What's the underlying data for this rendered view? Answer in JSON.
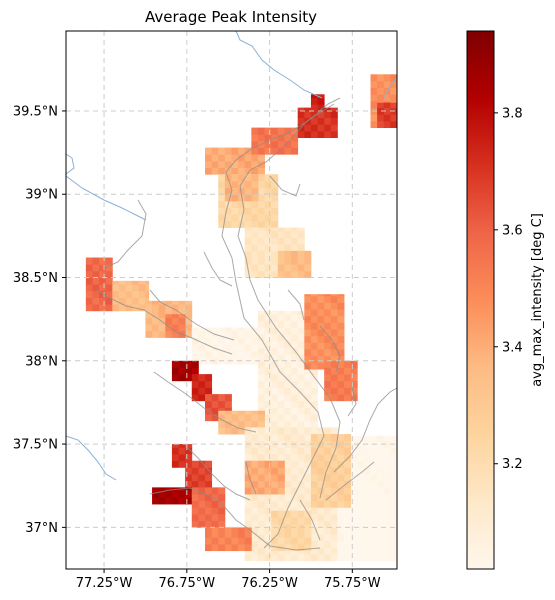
{
  "chart_data": {
    "type": "heatmap",
    "title": "Average Peak Intensity",
    "xlabel": "",
    "ylabel": "",
    "xlim": [
      -77.48,
      -75.48
    ],
    "ylim": [
      36.75,
      39.98
    ],
    "x_ticks": [
      {
        "value": -77.25,
        "label": "77.25°W"
      },
      {
        "value": -76.75,
        "label": "76.75°W"
      },
      {
        "value": -76.25,
        "label": "76.25°W"
      },
      {
        "value": -75.75,
        "label": "75.75°W"
      }
    ],
    "y_ticks": [
      {
        "value": 37.0,
        "label": "37°N"
      },
      {
        "value": 37.5,
        "label": "37.5°N"
      },
      {
        "value": 38.0,
        "label": "38°N"
      },
      {
        "value": 38.5,
        "label": "38.5°N"
      },
      {
        "value": 39.0,
        "label": "39°N"
      },
      {
        "value": 39.5,
        "label": "39.5°N"
      }
    ],
    "grid": true,
    "colorbar": {
      "label": "avg_max_intensity [deg C]",
      "vmin": 3.02,
      "vmax": 3.94,
      "ticks": [
        3.2,
        3.4,
        3.6,
        3.8
      ],
      "colormap": "OrRd"
    },
    "cell_size_deg": [
      0.04,
      0.04
    ],
    "regions": [
      {
        "lon": [
          -76.64,
          -76.28
        ],
        "lat": [
          39.12,
          39.28
        ],
        "value": 3.48
      },
      {
        "lon": [
          -76.36,
          -76.08
        ],
        "lat": [
          39.24,
          39.4
        ],
        "value": 3.62
      },
      {
        "lon": [
          -76.08,
          -75.84
        ],
        "lat": [
          39.34,
          39.52
        ],
        "value": 3.78
      },
      {
        "lon": [
          -76.0,
          -75.92
        ],
        "lat": [
          39.5,
          39.6
        ],
        "value": 3.82
      },
      {
        "lon": [
          -75.64,
          -75.48
        ],
        "lat": [
          39.4,
          39.72
        ],
        "value": 3.55
      },
      {
        "lon": [
          -75.6,
          -75.48
        ],
        "lat": [
          39.4,
          39.55
        ],
        "value": 3.75
      },
      {
        "lon": [
          -76.56,
          -76.2
        ],
        "lat": [
          38.8,
          39.12
        ],
        "value": 3.3
      },
      {
        "lon": [
          -76.52,
          -76.32
        ],
        "lat": [
          38.96,
          39.12
        ],
        "value": 3.45
      },
      {
        "lon": [
          -76.4,
          -76.04
        ],
        "lat": [
          38.5,
          38.8
        ],
        "value": 3.22
      },
      {
        "lon": [
          -76.2,
          -76.0
        ],
        "lat": [
          38.5,
          38.66
        ],
        "value": 3.42
      },
      {
        "lon": [
          -77.36,
          -77.2
        ],
        "lat": [
          38.3,
          38.62
        ],
        "value": 3.66
      },
      {
        "lon": [
          -77.2,
          -76.98
        ],
        "lat": [
          38.3,
          38.48
        ],
        "value": 3.42
      },
      {
        "lon": [
          -77.0,
          -76.72
        ],
        "lat": [
          38.14,
          38.36
        ],
        "value": 3.44
      },
      {
        "lon": [
          -76.88,
          -76.76
        ],
        "lat": [
          38.14,
          38.28
        ],
        "value": 3.58
      },
      {
        "lon": [
          -76.72,
          -76.2
        ],
        "lat": [
          37.98,
          38.2
        ],
        "value": 3.1
      },
      {
        "lon": [
          -76.32,
          -75.96
        ],
        "lat": [
          37.6,
          38.3
        ],
        "value": 3.14
      },
      {
        "lon": [
          -76.04,
          -75.8
        ],
        "lat": [
          37.95,
          38.4
        ],
        "value": 3.55
      },
      {
        "lon": [
          -75.92,
          -75.72
        ],
        "lat": [
          37.76,
          38.0
        ],
        "value": 3.6
      },
      {
        "lon": [
          -76.84,
          -76.68
        ],
        "lat": [
          37.88,
          38.0
        ],
        "value": 3.92
      },
      {
        "lon": [
          -76.72,
          -76.6
        ],
        "lat": [
          37.76,
          37.92
        ],
        "value": 3.8
      },
      {
        "lon": [
          -76.64,
          -76.48
        ],
        "lat": [
          37.64,
          37.8
        ],
        "value": 3.7
      },
      {
        "lon": [
          -76.56,
          -76.28
        ],
        "lat": [
          37.56,
          37.7
        ],
        "value": 3.42
      },
      {
        "lon": [
          -76.4,
          -75.84
        ],
        "lat": [
          36.8,
          37.6
        ],
        "value": 3.18
      },
      {
        "lon": [
          -75.84,
          -75.48
        ],
        "lat": [
          36.8,
          37.55
        ],
        "value": 3.08
      },
      {
        "lon": [
          -75.8,
          -75.48
        ],
        "lat": [
          36.8,
          37.2
        ],
        "value": 3.04
      },
      {
        "lon": [
          -76.84,
          -76.72
        ],
        "lat": [
          37.36,
          37.5
        ],
        "value": 3.78
      },
      {
        "lon": [
          -76.76,
          -76.6
        ],
        "lat": [
          37.24,
          37.4
        ],
        "value": 3.74
      },
      {
        "lon": [
          -76.96,
          -76.72
        ],
        "lat": [
          37.14,
          37.24
        ],
        "value": 3.92
      },
      {
        "lon": [
          -76.72,
          -76.52
        ],
        "lat": [
          37.0,
          37.24
        ],
        "value": 3.65
      },
      {
        "lon": [
          -76.64,
          -76.36
        ],
        "lat": [
          36.86,
          37.0
        ],
        "value": 3.58
      },
      {
        "lon": [
          -76.4,
          -76.16
        ],
        "lat": [
          37.2,
          37.4
        ],
        "value": 3.48
      },
      {
        "lon": [
          -76.24,
          -76.0
        ],
        "lat": [
          36.86,
          37.1
        ],
        "value": 3.3
      },
      {
        "lon": [
          -76.0,
          -75.76
        ],
        "lat": [
          37.12,
          37.56
        ],
        "value": 3.34
      }
    ]
  }
}
